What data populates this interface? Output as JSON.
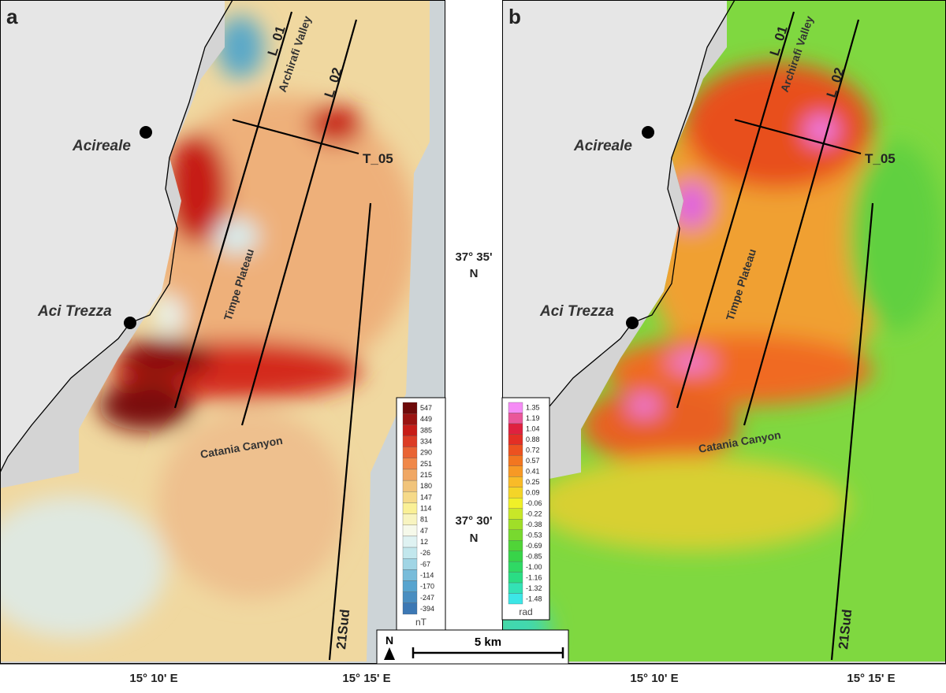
{
  "panels": [
    {
      "letter": "a",
      "profiles": [
        "L_01",
        "L_02",
        "T_05",
        "21Sud"
      ],
      "features": [
        "Archirafi Valley",
        "Timpe Plateau",
        "Catania Canyon"
      ],
      "towns": [
        "Acireale",
        "Aci Trezza"
      ],
      "colorbar": {
        "labels": [
          "547",
          "449",
          "385",
          "334",
          "290",
          "251",
          "215",
          "180",
          "147",
          "114",
          "81",
          "47",
          "12",
          "-26",
          "-67",
          "-114",
          "-170",
          "-247",
          "-394"
        ],
        "unit": "nT"
      },
      "lon_labels": [
        "15° 10' E",
        "15° 15' E"
      ]
    },
    {
      "letter": "b",
      "profiles": [
        "L_01",
        "L_02",
        "T_05",
        "21Sud"
      ],
      "features": [
        "Archirafi Valley",
        "Timpe Plateau",
        "Catania Canyon"
      ],
      "towns": [
        "Acireale",
        "Aci Trezza"
      ],
      "colorbar": {
        "labels": [
          "1.35",
          "1.19",
          "1.04",
          "0.88",
          "0.72",
          "0.57",
          "0.41",
          "0.25",
          "0.09",
          "-0.06",
          "-0.22",
          "-0.38",
          "-0.53",
          "-0.69",
          "-0.85",
          "-1.00",
          "-1.16",
          "-1.32",
          "-1.48"
        ],
        "unit": "rad"
      },
      "lon_labels": [
        "15° 10' E",
        "15° 15' E"
      ]
    }
  ],
  "lat_labels": [
    {
      "deg": "37° 35'",
      "hemi": "N"
    },
    {
      "deg": "37° 30'",
      "hemi": "N"
    }
  ],
  "scale": {
    "north": "N",
    "length": "5 km"
  }
}
